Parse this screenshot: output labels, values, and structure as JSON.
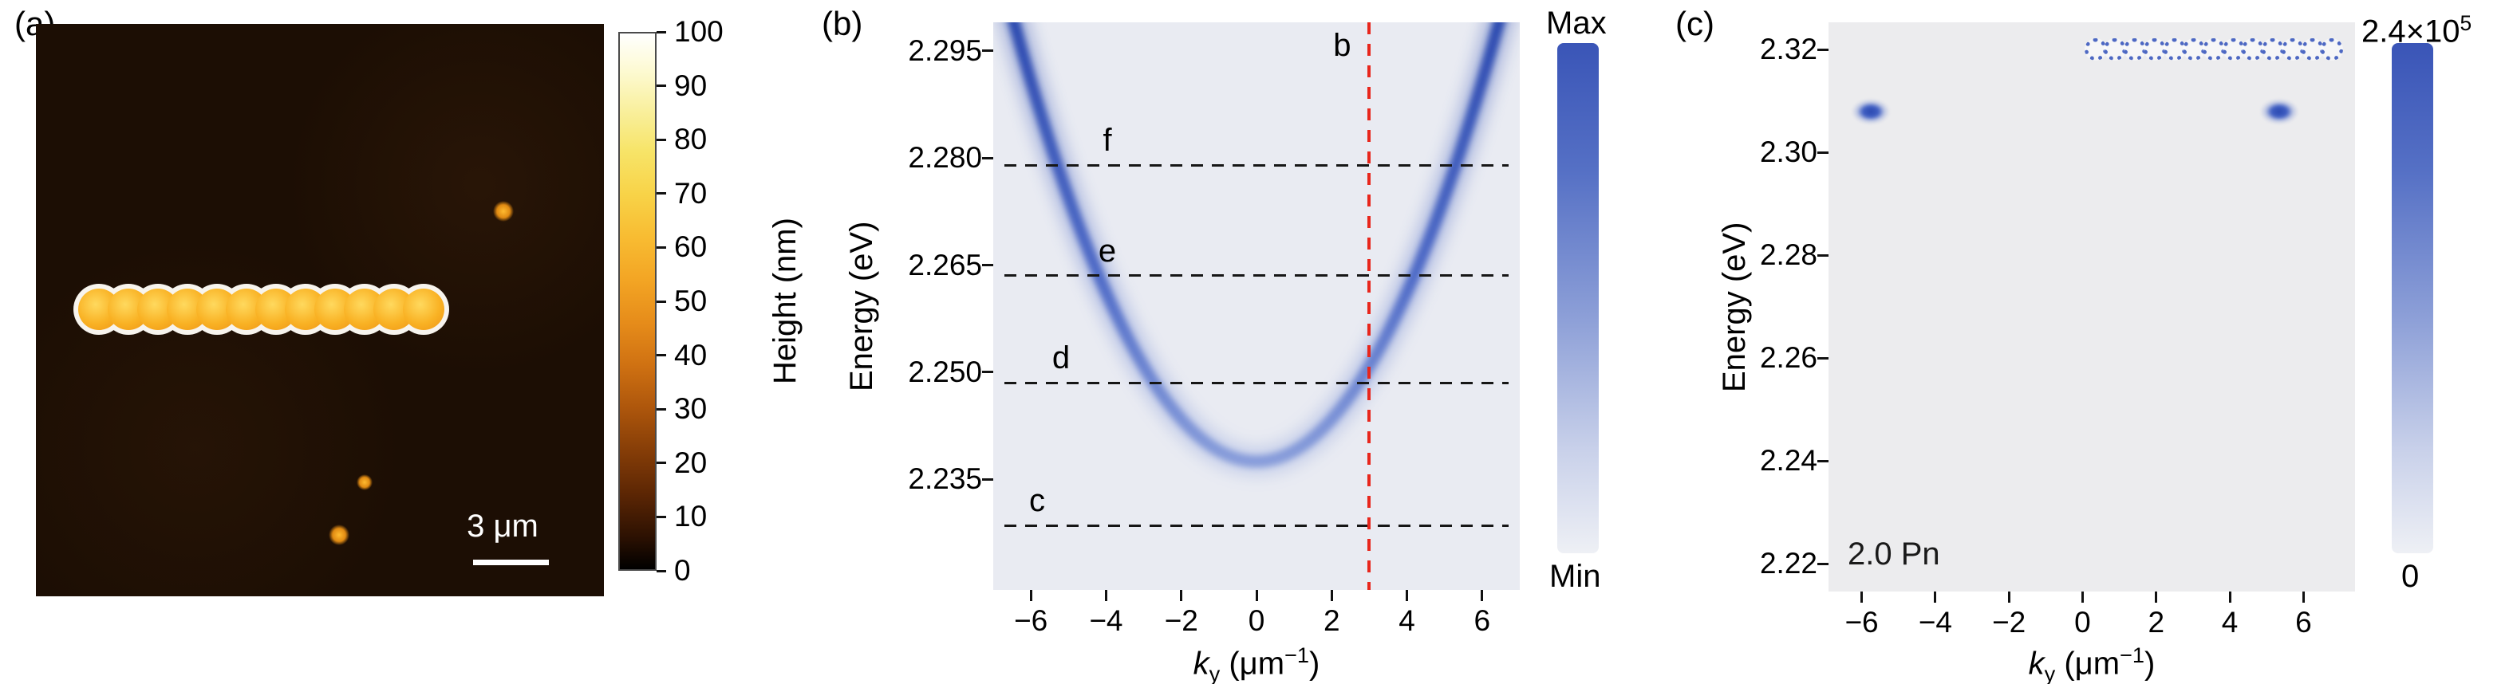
{
  "figure_labels": {
    "a": "(a)",
    "b": "(b)",
    "c": "(c)"
  },
  "panel_a": {
    "scale_bar_label": "3 μm",
    "colorbar_label": "Height (nm)"
  },
  "panel_b": {
    "ylabel": "Energy (eV)",
    "x_var": "k",
    "x_sub": "y",
    "x_unit_pre": " (μm",
    "x_unit_sup": "−1",
    "x_unit_post": ")",
    "colorbar_top": "Max",
    "colorbar_bottom": "Min"
  },
  "panel_c": {
    "ylabel": "Energy (eV)",
    "x_var": "k",
    "x_sub": "y",
    "x_unit_pre": " (μm",
    "x_unit_sup": "−1",
    "x_unit_post": ")",
    "annotation": "2.0 Pn",
    "colorbar_top_base": "2.4×10",
    "colorbar_top_sup": "5",
    "colorbar_bottom": "0"
  },
  "chart_data": [
    {
      "id": "a",
      "type": "heatmap",
      "description": "AFM topography image of a linear chain of 12 overlapping nanoparticle disks with 3 isolated particles on a dark substrate",
      "colorbar": {
        "label": "Height (nm)",
        "min": 0,
        "max": 100,
        "ticks": [
          100,
          90,
          80,
          70,
          60,
          50,
          40,
          30,
          20,
          10,
          0
        ]
      },
      "scale_bar": "3 μm",
      "features": {
        "chain": {
          "count": 12,
          "fy": 0.499,
          "fx_start": 0.111,
          "fx_end": 0.682
        },
        "isolated_particles": [
          {
            "fx": 0.823,
            "fy": 0.327,
            "d": 26
          },
          {
            "fx": 0.579,
            "fy": 0.801,
            "d": 20
          },
          {
            "fx": 0.534,
            "fy": 0.893,
            "d": 26
          }
        ]
      }
    },
    {
      "id": "b",
      "type": "heatmap",
      "xlabel": "ky (μm−1)",
      "ylabel": "Energy (eV)",
      "xlim": [
        -7,
        7
      ],
      "ylim": [
        2.2195,
        2.299
      ],
      "xticks": [
        -6,
        -4,
        -2,
        0,
        2,
        4,
        6
      ],
      "yticks": [
        "2.235",
        "2.250",
        "2.265",
        "2.280",
        "2.295"
      ],
      "colorbar": {
        "top": "Max",
        "bottom": "Min"
      },
      "band": {
        "model": "E(ky) = E0 + a*ky^2",
        "E0_eV": 2.2375,
        "a_eV_um2": 0.00148
      },
      "cut_lines": [
        {
          "label": "c",
          "energy_eV": 2.2285
        },
        {
          "label": "d",
          "energy_eV": 2.2485
        },
        {
          "label": "e",
          "energy_eV": 2.2635
        },
        {
          "label": "f",
          "energy_eV": 2.279
        }
      ],
      "vline": {
        "label": "b",
        "ky": 3.0,
        "color": "#e8261c"
      }
    },
    {
      "id": "c",
      "type": "heatmap",
      "xlabel": "ky (μm−1)",
      "ylabel": "Energy (eV)",
      "xlim": [
        -6.9,
        7.4
      ],
      "ylim": [
        2.2146,
        2.3253
      ],
      "xticks": [
        -6,
        -4,
        -2,
        0,
        2,
        4,
        6
      ],
      "yticks": [
        "2.22",
        "2.24",
        "2.26",
        "2.28",
        "2.30",
        "2.32"
      ],
      "annotation": "2.0 Pn",
      "colorbar": {
        "top": "2.4×10⁵",
        "bottom": "0"
      },
      "features": {
        "mode_row": {
          "energy_eV": 2.32,
          "ky_start": 0.35,
          "ky_end": 6.78,
          "count": 13
        },
        "spots": [
          {
            "ky": -5.75,
            "energy_eV": 2.308
          },
          {
            "ky": 5.35,
            "energy_eV": 2.308
          }
        ]
      },
      "accent_color": "#3a55b7"
    }
  ]
}
